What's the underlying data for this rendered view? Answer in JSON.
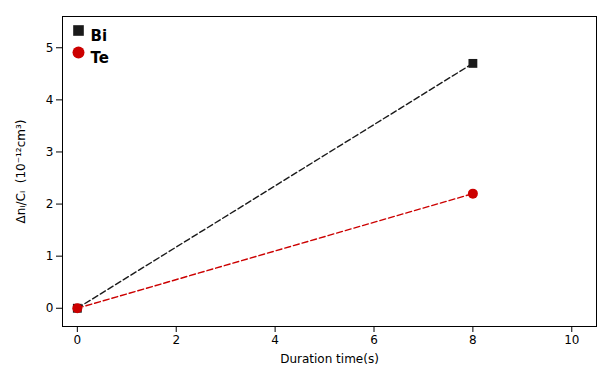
{
  "chart_data": {
    "type": "line",
    "xlabel": "Duration time(s)",
    "ylabel": "Δnᵢ/Cᵢ  (10⁻¹²cm³)",
    "x": [
      0,
      8
    ],
    "series": [
      {
        "name": "Bi",
        "color": "#1a1a1a",
        "values": [
          0,
          4.7
        ],
        "marker": "square",
        "line_style": "dashed"
      },
      {
        "name": "Te",
        "color": "#cc0000",
        "values": [
          0,
          2.2
        ],
        "marker": "circle",
        "line_style": "dashed"
      }
    ],
    "xlim": [
      -0.3,
      10.5
    ],
    "ylim": [
      -0.35,
      5.6
    ],
    "xticks": [
      0,
      2,
      4,
      6,
      8,
      10
    ],
    "yticks": [
      0,
      1,
      2,
      3,
      4,
      5
    ],
    "grid": false,
    "legend": "upper left"
  }
}
